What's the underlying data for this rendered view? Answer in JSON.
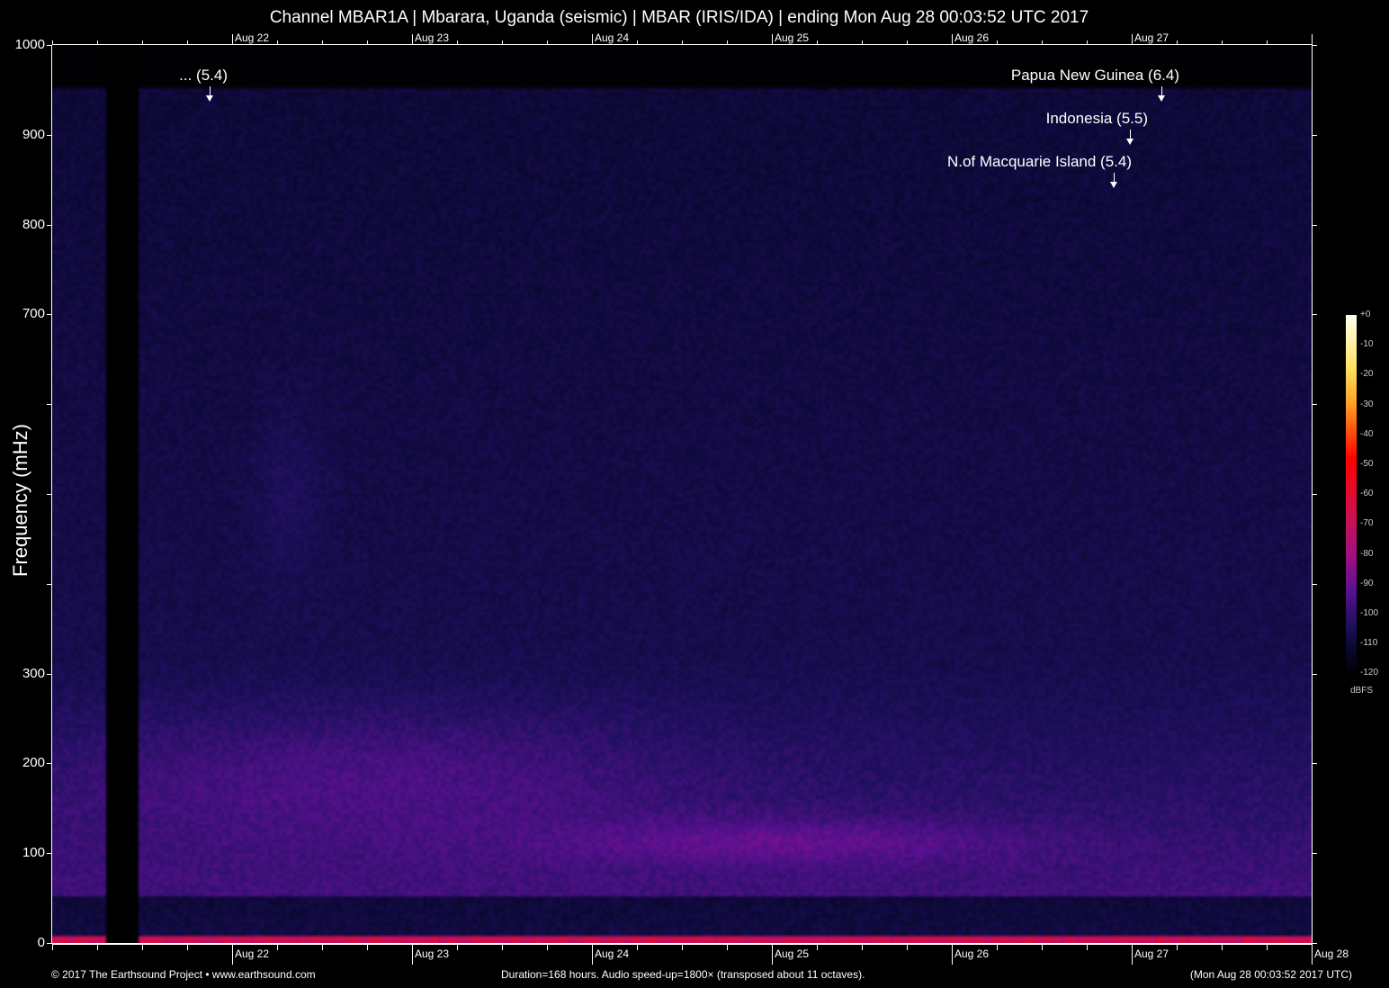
{
  "title": "Channel MBAR1A | Mbarara, Uganda (seismic) | MBAR (IRIS/IDA) | ending Mon Aug 28 00:03:52 UTC 2017",
  "chart_data": {
    "type": "heatmap",
    "title": "Channel MBAR1A | Mbarara, Uganda (seismic) | MBAR (IRIS/IDA) | ending Mon Aug 28 00:03:52 UTC 2017",
    "ylabel": "Frequency (mHz)",
    "ylim": [
      0,
      1000
    ],
    "y_ticks": [
      "1000",
      "900",
      "800",
      "700",
      "",
      "",
      "",
      "300",
      "200",
      "100",
      "0"
    ],
    "x_ticks_top": [
      "Aug 22",
      "Aug 23",
      "Aug 24",
      "Aug 25",
      "Aug 26",
      "Aug 27"
    ],
    "x_ticks_bottom": [
      "Aug 22",
      "Aug 23",
      "Aug 24",
      "Aug 25",
      "Aug 26",
      "Aug 27",
      "Aug 28"
    ],
    "colorbar": {
      "label": "dBFS",
      "ticks": [
        "+0",
        "-10",
        "-20",
        "-30",
        "-40",
        "-50",
        "-60",
        "-70",
        "-80",
        "-90",
        "-100",
        "-110",
        "-120"
      ],
      "range": [
        -120,
        0
      ]
    },
    "annotations": [
      {
        "text": "... (5.4)",
        "date": "Aug 21 ~19:00"
      },
      {
        "text": "Papua New Guinea (6.4)",
        "date": "Aug 27 ~01:00"
      },
      {
        "text": "Indonesia (5.5)",
        "date": "Aug 26 ~21:00"
      },
      {
        "text": "N.of Macquarie Island (5.4)",
        "date": "Aug 26 ~19:00"
      }
    ]
  },
  "footer": {
    "left": "© 2017 The Earthsound Project • www.earthsound.com",
    "center": "Duration=168 hours. Audio speed-up=1800× (transposed about 11 octaves).",
    "right": "(Mon Aug 28 00:03:52 2017 UTC)"
  }
}
